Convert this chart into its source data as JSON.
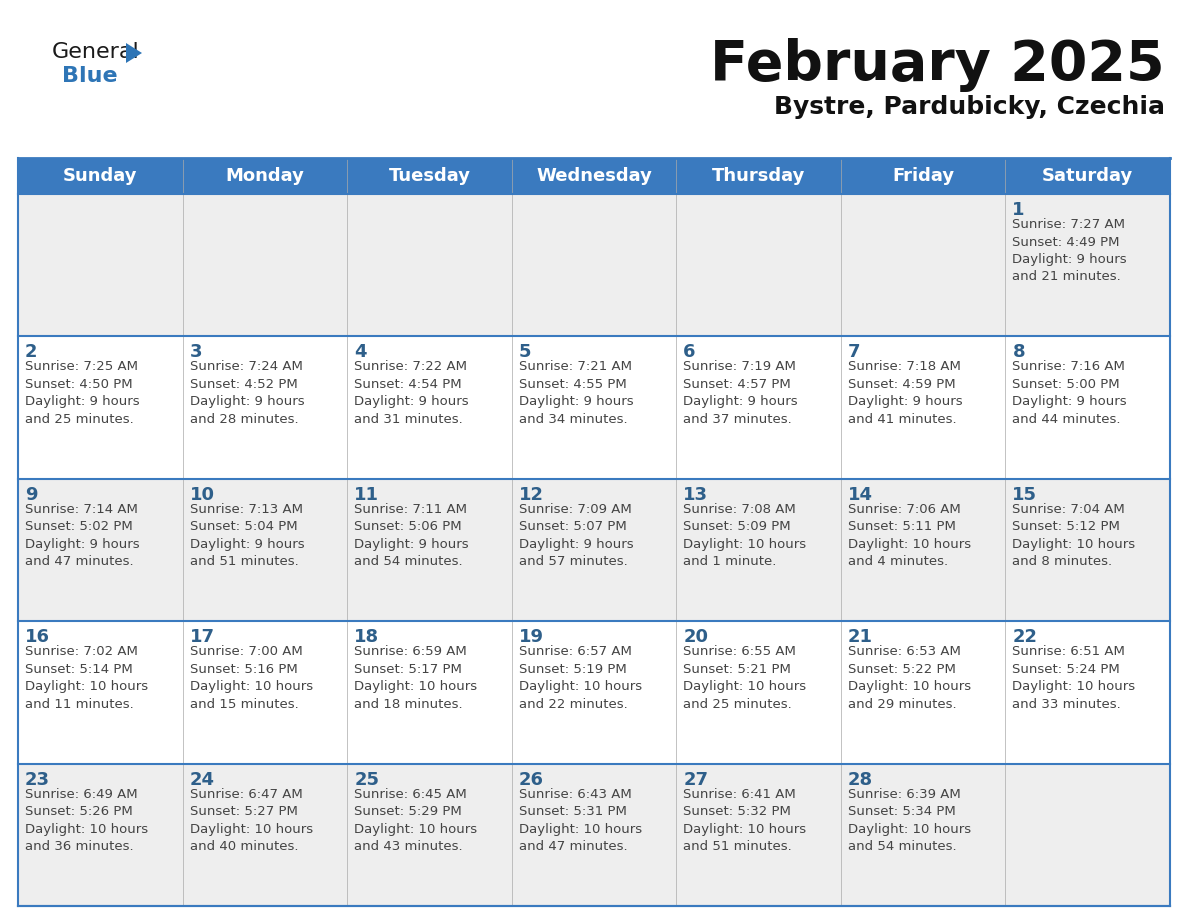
{
  "title": "February 2025",
  "subtitle": "Bystre, Pardubicky, Czechia",
  "header_color": "#3a7abf",
  "header_text_color": "#ffffff",
  "cell_bg_row0": "#eeeeee",
  "cell_bg_row1": "#ffffff",
  "cell_bg_row2": "#eeeeee",
  "cell_bg_row3": "#ffffff",
  "cell_bg_row4": "#eeeeee",
  "day_text_color": "#2e5f8a",
  "info_text_color": "#444444",
  "border_color": "#3a7abf",
  "grid_color": "#aaaaaa",
  "days_of_week": [
    "Sunday",
    "Monday",
    "Tuesday",
    "Wednesday",
    "Thursday",
    "Friday",
    "Saturday"
  ],
  "calendar_data": [
    [
      {
        "day": "",
        "info": ""
      },
      {
        "day": "",
        "info": ""
      },
      {
        "day": "",
        "info": ""
      },
      {
        "day": "",
        "info": ""
      },
      {
        "day": "",
        "info": ""
      },
      {
        "day": "",
        "info": ""
      },
      {
        "day": "1",
        "info": "Sunrise: 7:27 AM\nSunset: 4:49 PM\nDaylight: 9 hours\nand 21 minutes."
      }
    ],
    [
      {
        "day": "2",
        "info": "Sunrise: 7:25 AM\nSunset: 4:50 PM\nDaylight: 9 hours\nand 25 minutes."
      },
      {
        "day": "3",
        "info": "Sunrise: 7:24 AM\nSunset: 4:52 PM\nDaylight: 9 hours\nand 28 minutes."
      },
      {
        "day": "4",
        "info": "Sunrise: 7:22 AM\nSunset: 4:54 PM\nDaylight: 9 hours\nand 31 minutes."
      },
      {
        "day": "5",
        "info": "Sunrise: 7:21 AM\nSunset: 4:55 PM\nDaylight: 9 hours\nand 34 minutes."
      },
      {
        "day": "6",
        "info": "Sunrise: 7:19 AM\nSunset: 4:57 PM\nDaylight: 9 hours\nand 37 minutes."
      },
      {
        "day": "7",
        "info": "Sunrise: 7:18 AM\nSunset: 4:59 PM\nDaylight: 9 hours\nand 41 minutes."
      },
      {
        "day": "8",
        "info": "Sunrise: 7:16 AM\nSunset: 5:00 PM\nDaylight: 9 hours\nand 44 minutes."
      }
    ],
    [
      {
        "day": "9",
        "info": "Sunrise: 7:14 AM\nSunset: 5:02 PM\nDaylight: 9 hours\nand 47 minutes."
      },
      {
        "day": "10",
        "info": "Sunrise: 7:13 AM\nSunset: 5:04 PM\nDaylight: 9 hours\nand 51 minutes."
      },
      {
        "day": "11",
        "info": "Sunrise: 7:11 AM\nSunset: 5:06 PM\nDaylight: 9 hours\nand 54 minutes."
      },
      {
        "day": "12",
        "info": "Sunrise: 7:09 AM\nSunset: 5:07 PM\nDaylight: 9 hours\nand 57 minutes."
      },
      {
        "day": "13",
        "info": "Sunrise: 7:08 AM\nSunset: 5:09 PM\nDaylight: 10 hours\nand 1 minute."
      },
      {
        "day": "14",
        "info": "Sunrise: 7:06 AM\nSunset: 5:11 PM\nDaylight: 10 hours\nand 4 minutes."
      },
      {
        "day": "15",
        "info": "Sunrise: 7:04 AM\nSunset: 5:12 PM\nDaylight: 10 hours\nand 8 minutes."
      }
    ],
    [
      {
        "day": "16",
        "info": "Sunrise: 7:02 AM\nSunset: 5:14 PM\nDaylight: 10 hours\nand 11 minutes."
      },
      {
        "day": "17",
        "info": "Sunrise: 7:00 AM\nSunset: 5:16 PM\nDaylight: 10 hours\nand 15 minutes."
      },
      {
        "day": "18",
        "info": "Sunrise: 6:59 AM\nSunset: 5:17 PM\nDaylight: 10 hours\nand 18 minutes."
      },
      {
        "day": "19",
        "info": "Sunrise: 6:57 AM\nSunset: 5:19 PM\nDaylight: 10 hours\nand 22 minutes."
      },
      {
        "day": "20",
        "info": "Sunrise: 6:55 AM\nSunset: 5:21 PM\nDaylight: 10 hours\nand 25 minutes."
      },
      {
        "day": "21",
        "info": "Sunrise: 6:53 AM\nSunset: 5:22 PM\nDaylight: 10 hours\nand 29 minutes."
      },
      {
        "day": "22",
        "info": "Sunrise: 6:51 AM\nSunset: 5:24 PM\nDaylight: 10 hours\nand 33 minutes."
      }
    ],
    [
      {
        "day": "23",
        "info": "Sunrise: 6:49 AM\nSunset: 5:26 PM\nDaylight: 10 hours\nand 36 minutes."
      },
      {
        "day": "24",
        "info": "Sunrise: 6:47 AM\nSunset: 5:27 PM\nDaylight: 10 hours\nand 40 minutes."
      },
      {
        "day": "25",
        "info": "Sunrise: 6:45 AM\nSunset: 5:29 PM\nDaylight: 10 hours\nand 43 minutes."
      },
      {
        "day": "26",
        "info": "Sunrise: 6:43 AM\nSunset: 5:31 PM\nDaylight: 10 hours\nand 47 minutes."
      },
      {
        "day": "27",
        "info": "Sunrise: 6:41 AM\nSunset: 5:32 PM\nDaylight: 10 hours\nand 51 minutes."
      },
      {
        "day": "28",
        "info": "Sunrise: 6:39 AM\nSunset: 5:34 PM\nDaylight: 10 hours\nand 54 minutes."
      },
      {
        "day": "",
        "info": ""
      }
    ]
  ],
  "logo_general_color": "#1a1a1a",
  "logo_blue_color": "#2e75b6",
  "logo_triangle_color": "#2e75b6",
  "title_fontsize": 40,
  "subtitle_fontsize": 18,
  "header_fontsize": 13,
  "day_num_fontsize": 13,
  "info_fontsize": 9.5
}
